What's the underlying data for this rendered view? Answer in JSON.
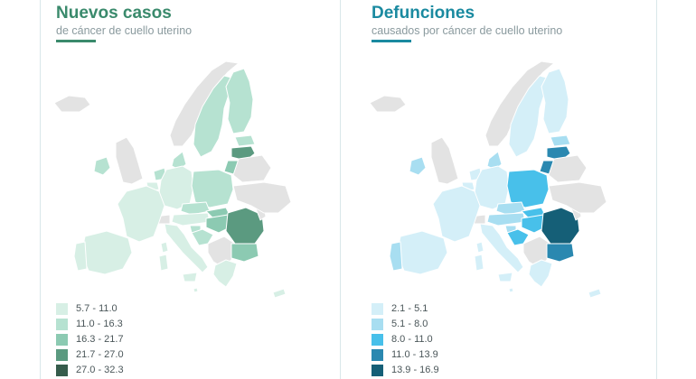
{
  "panels": [
    {
      "title": "Nuevos casos",
      "subtitle": "de cáncer de cuello uterino",
      "accent_color": "#3a8a6c",
      "no_data_color": "#e3e3e3",
      "legend": [
        {
          "label": "5.7 - 11.0",
          "color": "#d7efe5"
        },
        {
          "label": "11.0 - 16.3",
          "color": "#b6e2d1"
        },
        {
          "label": "16.3 - 21.7",
          "color": "#8ccab2"
        },
        {
          "label": "21.7 - 27.0",
          "color": "#5b9a80"
        },
        {
          "label": "27.0 - 32.3",
          "color": "#365c4c"
        }
      ],
      "country_class": {
        "iceland": "nodata",
        "norway": "nodata",
        "uk": "nodata",
        "belarus": "nodata",
        "ukraine": "nodata",
        "balkans": "nodata",
        "switzerland": "nodata",
        "moldova": "nodata",
        "ireland": 2,
        "sweden": 2,
        "finland": 2,
        "estonia": 2,
        "latvia": 4,
        "lithuania": 3,
        "denmark": 2,
        "netherlands": 2,
        "germany": 1,
        "poland": 2,
        "czechia": 2,
        "slovakia": 3,
        "hungary": 3,
        "romania": 4,
        "bulgaria": 3,
        "france": 1,
        "belgium": 1,
        "austria": 1,
        "slovenia": 2,
        "croatia": 2,
        "italy": 1,
        "spain": 1,
        "portugal": 1,
        "greece": 1,
        "cyprus": 1,
        "malta": 1,
        "corsica": 1,
        "sardinia": 1,
        "sicily": 1
      }
    },
    {
      "title": "Defunciones",
      "subtitle": "causados por cáncer de cuello uterino",
      "accent_color": "#1a8aa0",
      "no_data_color": "#e3e3e3",
      "legend": [
        {
          "label": "2.1 - 5.1",
          "color": "#d4eff8"
        },
        {
          "label": "5.1 - 8.0",
          "color": "#a8def1"
        },
        {
          "label": "8.0 - 11.0",
          "color": "#48c0ea"
        },
        {
          "label": "11.0 - 13.9",
          "color": "#2a88b0"
        },
        {
          "label": "13.9 - 16.9",
          "color": "#155f77"
        }
      ],
      "country_class": {
        "iceland": "nodata",
        "norway": "nodata",
        "uk": "nodata",
        "belarus": "nodata",
        "ukraine": "nodata",
        "balkans": "nodata",
        "switzerland": "nodata",
        "moldova": "nodata",
        "ireland": 2,
        "sweden": 1,
        "finland": 1,
        "estonia": 2,
        "latvia": 4,
        "lithuania": 4,
        "denmark": 2,
        "netherlands": 1,
        "germany": 1,
        "poland": 3,
        "czechia": 2,
        "slovakia": 3,
        "hungary": 3,
        "romania": 5,
        "bulgaria": 4,
        "france": 1,
        "belgium": 1,
        "austria": 2,
        "slovenia": 2,
        "croatia": 3,
        "italy": 1,
        "spain": 1,
        "portugal": 2,
        "greece": 1,
        "cyprus": 1,
        "malta": 1,
        "corsica": 1,
        "sardinia": 1,
        "sicily": 1
      }
    }
  ]
}
